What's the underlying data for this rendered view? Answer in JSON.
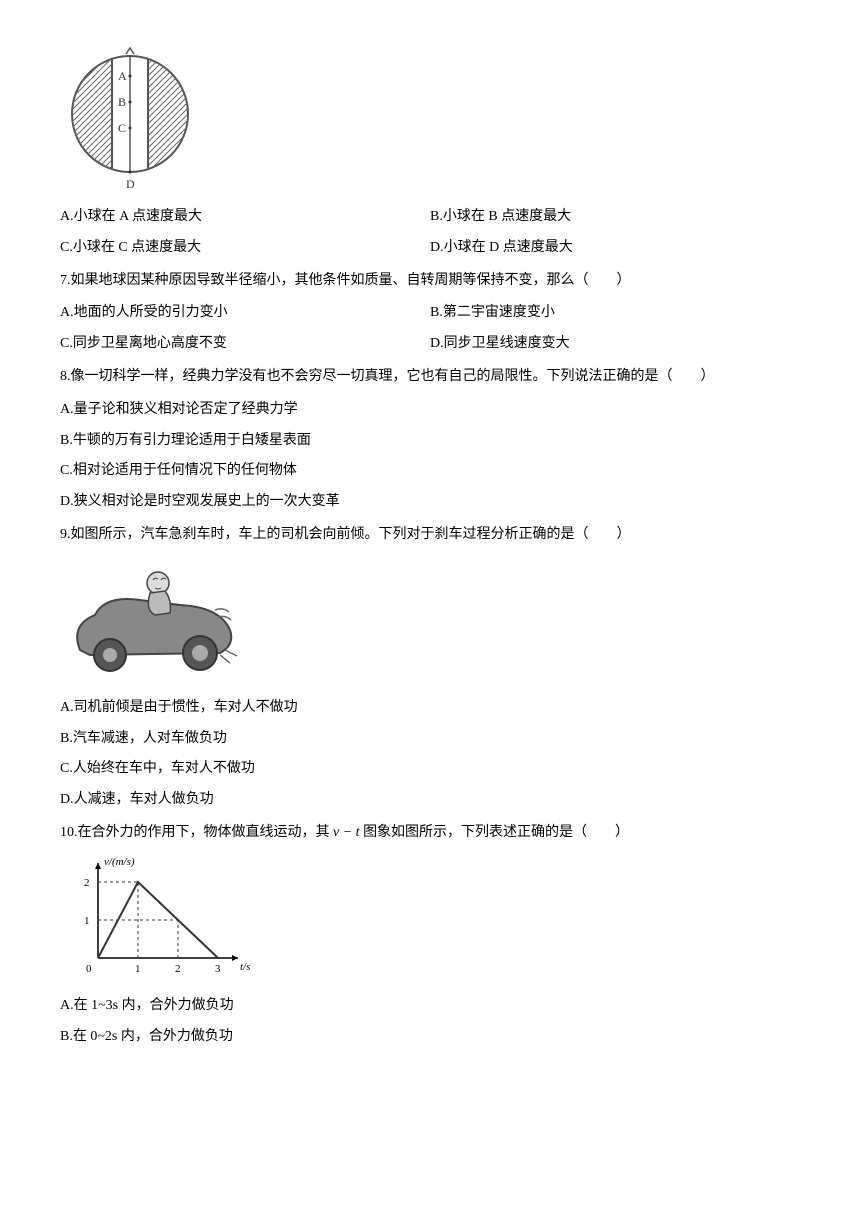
{
  "figure1": {
    "labels": [
      "A",
      "B",
      "C",
      "D"
    ],
    "stroke": "#555555",
    "fill_pattern": "#777777"
  },
  "q6": {
    "A": "A.小球在 A 点速度最大",
    "B": "B.小球在 B 点速度最大",
    "C": "C.小球在 C 点速度最大",
    "D": "D.小球在 D 点速度最大"
  },
  "q7": {
    "stem": "7.如果地球因某种原因导致半径缩小，其他条件如质量、自转周期等保持不变，那么（　　）",
    "A": "A.地面的人所受的引力变小",
    "B": "B.第二宇宙速度变小",
    "C": "C.同步卫星离地心高度不变",
    "D": "D.同步卫星线速度变大"
  },
  "q8": {
    "stem": "8.像一切科学一样，经典力学没有也不会穷尽一切真理，它也有自己的局限性。下列说法正确的是（　　）",
    "A": "A.量子论和狭义相对论否定了经典力学",
    "B": "B.牛顿的万有引力理论适用于白矮星表面",
    "C": "C.相对论适用于任何情况下的任何物体",
    "D": "D.狭义相对论是时空观发展史上的一次大变革"
  },
  "q9": {
    "stem": "9.如图所示，汽车急刹车时，车上的司机会向前倾。下列对于刹车过程分析正确的是（　　）",
    "A": "A.司机前倾是由于惯性，车对人不做功",
    "B": "B.汽车减速，人对车做负功",
    "C": "C.人始终在车中，车对人不做功",
    "D": "D.人减速，车对人做负功"
  },
  "q10": {
    "stem_prefix": "10.在合外力的作用下，物体做直线运动，其 ",
    "stem_var": "v − t",
    "stem_suffix": " 图象如图所示，下列表述正确的是（　　）",
    "A": "A.在 1~3s 内，合外力做负功",
    "B": "B.在 0~2s 内，合外力做负功"
  },
  "chart": {
    "type": "line",
    "ylabel": "v/(m/s)",
    "xlabel": "t/s",
    "xlim": [
      0,
      3.5
    ],
    "ylim": [
      0,
      2.5
    ],
    "xticks": [
      0,
      1,
      2,
      3
    ],
    "yticks": [
      1,
      2
    ],
    "points": [
      [
        0,
        0
      ],
      [
        1,
        2
      ],
      [
        3,
        0
      ]
    ],
    "dash_lines": [
      {
        "from": [
          1,
          0
        ],
        "to": [
          1,
          2
        ]
      },
      {
        "from": [
          0,
          2
        ],
        "to": [
          1,
          2
        ]
      },
      {
        "from": [
          2,
          0
        ],
        "to": [
          2,
          1
        ]
      },
      {
        "from": [
          0,
          1
        ],
        "to": [
          2,
          1
        ]
      }
    ],
    "stroke": "#333333",
    "axis_color": "#000000",
    "background": "#ffffff",
    "font_size": 11
  }
}
